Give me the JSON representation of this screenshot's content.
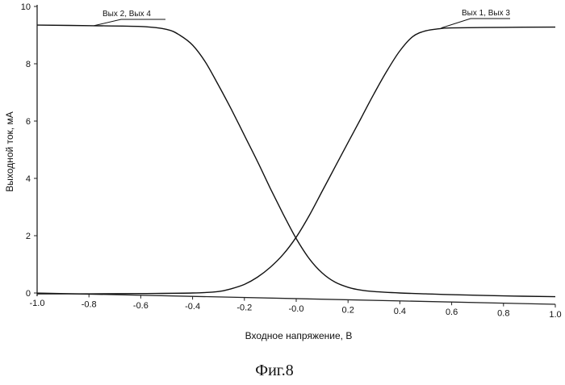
{
  "chart_data": {
    "type": "line",
    "title": "",
    "xlabel": "Входное напряжение, В",
    "ylabel": "Выходной ток, мА",
    "xlim": [
      -1.0,
      1.0
    ],
    "ylim": [
      0,
      10
    ],
    "x_ticks": [
      -1.0,
      -0.8,
      -0.6,
      -0.4,
      -0.2,
      0.0,
      0.2,
      0.4,
      0.6,
      0.8,
      1.0
    ],
    "x_tick_labels": [
      "-1.0",
      "-0.8",
      "-0.6",
      "-0.4",
      "-0.2",
      "-0.0",
      "0.2",
      "0.4",
      "0.6",
      "0.8",
      "1.0"
    ],
    "y_ticks": [
      0,
      2,
      4,
      6,
      8,
      10
    ],
    "y_tick_labels": [
      "0",
      "2",
      "4",
      "6",
      "8",
      "10"
    ],
    "grid": false,
    "series": [
      {
        "name": "Вых 2, Вых 4",
        "x": [
          -1.0,
          -0.8,
          -0.6,
          -0.5,
          -0.45,
          -0.4,
          -0.35,
          -0.3,
          -0.25,
          -0.2,
          -0.15,
          -0.1,
          -0.05,
          0.0,
          0.05,
          0.1,
          0.15,
          0.2,
          0.25,
          0.3,
          0.4,
          0.5,
          0.6,
          0.8,
          1.0
        ],
        "y": [
          9.35,
          9.33,
          9.3,
          9.2,
          9.0,
          8.65,
          8.05,
          7.25,
          6.4,
          5.5,
          4.6,
          3.65,
          2.75,
          1.9,
          1.2,
          0.7,
          0.38,
          0.2,
          0.1,
          0.05,
          0.0,
          -0.03,
          -0.06,
          -0.1,
          -0.13
        ]
      },
      {
        "name": "Вых 1, Вых 3",
        "x": [
          -1.0,
          -0.8,
          -0.6,
          -0.4,
          -0.3,
          -0.25,
          -0.2,
          -0.15,
          -0.1,
          -0.05,
          0.0,
          0.05,
          0.1,
          0.15,
          0.2,
          0.25,
          0.3,
          0.35,
          0.4,
          0.45,
          0.5,
          0.55,
          0.6,
          0.8,
          1.0
        ],
        "y": [
          -0.03,
          -0.03,
          -0.02,
          0.0,
          0.05,
          0.15,
          0.3,
          0.55,
          0.9,
          1.35,
          1.95,
          2.7,
          3.55,
          4.4,
          5.25,
          6.1,
          6.95,
          7.75,
          8.45,
          8.95,
          9.15,
          9.22,
          9.25,
          9.27,
          9.28
        ]
      }
    ],
    "legend": [
      {
        "label": "Вых 2, Вых 4",
        "placement": "top-left"
      },
      {
        "label": "Вых 1, Вых 3",
        "placement": "top-right"
      }
    ]
  },
  "caption": "Фиг.8"
}
